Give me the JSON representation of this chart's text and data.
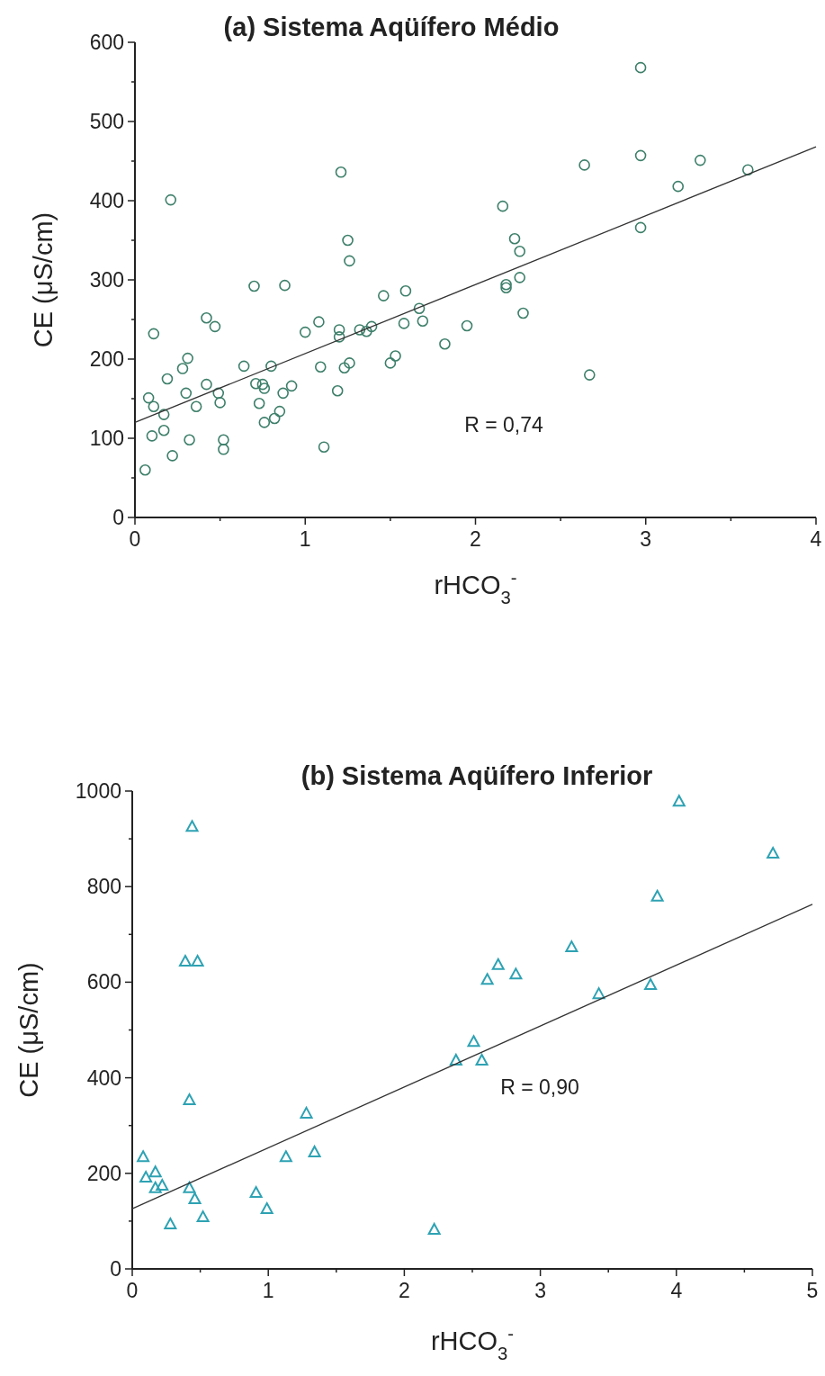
{
  "chart_data": [
    {
      "type": "scatter",
      "title": "(a)  Sistema Aqüífero Médio",
      "xlabel": "rHCO$_{3}$$^{-}$",
      "ylabel": "CE (μS/cm)",
      "xlim": [
        0,
        4
      ],
      "ylim": [
        0,
        600
      ],
      "xticks": [
        0,
        {
          "value": 0.5,
          "label": null
        },
        1,
        {
          "value": 1.5,
          "label": null
        },
        2,
        {
          "value": 2.5,
          "label": null
        },
        3,
        {
          "value": 3.5,
          "label": null
        },
        4
      ],
      "yticks": [
        0,
        {
          "value": 50,
          "label": null
        },
        100,
        {
          "value": 150,
          "label": null
        },
        200,
        {
          "value": 250,
          "label": null
        },
        300,
        {
          "value": 350,
          "label": null
        },
        400,
        {
          "value": 450,
          "label": null
        },
        500,
        {
          "value": 550,
          "label": null
        },
        600
      ],
      "annotations": [
        "R = 0,74"
      ],
      "series": [
        {
          "marker": "circle",
          "color": "#3d7f6a",
          "x": [
            0.21,
            0.11,
            0.08,
            0.11,
            0.17,
            0.17,
            0.1,
            0.06,
            0.22,
            0.19,
            0.28,
            0.31,
            0.3,
            0.32,
            0.36,
            0.42,
            0.47,
            0.42,
            0.49,
            0.5,
            0.52,
            0.52,
            0.64,
            0.7,
            0.71,
            0.75,
            0.76,
            0.73,
            0.76,
            0.82,
            0.85,
            0.8,
            0.87,
            0.88,
            0.92,
            1.0,
            1.08,
            1.09,
            1.11,
            1.19,
            1.2,
            1.2,
            1.21,
            1.23,
            1.26,
            1.25,
            1.26,
            1.32,
            1.36,
            1.39,
            1.46,
            1.5,
            1.53,
            1.58,
            1.59,
            1.67,
            1.69,
            1.82,
            1.95,
            2.16,
            2.18,
            2.18,
            2.23,
            2.26,
            2.26,
            2.28,
            2.67,
            2.64,
            2.97,
            2.97,
            2.97,
            3.19,
            3.32,
            3.6
          ],
          "values": [
            401,
            232,
            151,
            140,
            130,
            110,
            103,
            60,
            78,
            175,
            188,
            201,
            157,
            98,
            140,
            252,
            241,
            168,
            157,
            145,
            98,
            86,
            191,
            292,
            169,
            168,
            163,
            144,
            120,
            125,
            134,
            191,
            157,
            293,
            166,
            234,
            247,
            190,
            89,
            160,
            237,
            228,
            436,
            189,
            195,
            350,
            324,
            237,
            235,
            241,
            280,
            195,
            204,
            245,
            286,
            264,
            248,
            219,
            242,
            393,
            294,
            290,
            352,
            336,
            303,
            258,
            180,
            445,
            568,
            457,
            366,
            418,
            451,
            439
          ]
        },
        {
          "type": "line",
          "color": "#333333",
          "x": [
            0,
            4
          ],
          "values": [
            120,
            468
          ]
        }
      ]
    },
    {
      "type": "scatter",
      "title": "(b)  Sistema Aqüífero Inferior",
      "xlabel": "rHCO$_{3}$$^{-}$",
      "ylabel": "CE (μS/cm)",
      "xlim": [
        0,
        5
      ],
      "ylim": [
        0,
        1000
      ],
      "xticks": [
        0,
        {
          "value": 0.5,
          "label": null
        },
        1,
        {
          "value": 1.5,
          "label": null
        },
        2,
        {
          "value": 2.5,
          "label": null
        },
        3,
        {
          "value": 3.5,
          "label": null
        },
        4,
        {
          "value": 4.5,
          "label": null
        },
        5
      ],
      "yticks": [
        0,
        {
          "value": 100,
          "label": null
        },
        200,
        {
          "value": 300,
          "label": null
        },
        400,
        {
          "value": 500,
          "label": null
        },
        600,
        {
          "value": 700,
          "label": null
        },
        800,
        {
          "value": 900,
          "label": null
        },
        1000
      ],
      "annotations": [
        "R = 0,90"
      ],
      "series": [
        {
          "marker": "triangle",
          "color": "#2ea2b3",
          "x": [
            0.44,
            0.39,
            0.48,
            0.42,
            1.28,
            0.08,
            0.17,
            0.1,
            0.17,
            0.22,
            0.42,
            0.46,
            0.28,
            0.52,
            0.91,
            0.99,
            1.13,
            1.34,
            2.22,
            2.38,
            4.02,
            4.71,
            3.86,
            3.23,
            2.69,
            2.61,
            2.82,
            3.43,
            3.81,
            2.51,
            2.57
          ],
          "values": [
            926,
            644,
            644,
            354,
            326,
            235,
            203,
            192,
            170,
            175,
            170,
            147,
            94,
            109,
            160,
            126,
            235,
            245,
            83,
            437,
            979,
            870,
            780,
            674,
            637,
            606,
            617,
            576,
            595,
            476,
            437
          ]
        },
        {
          "type": "line",
          "color": "#333333",
          "x": [
            0,
            5
          ],
          "values": [
            126,
            763
          ]
        }
      ]
    }
  ]
}
